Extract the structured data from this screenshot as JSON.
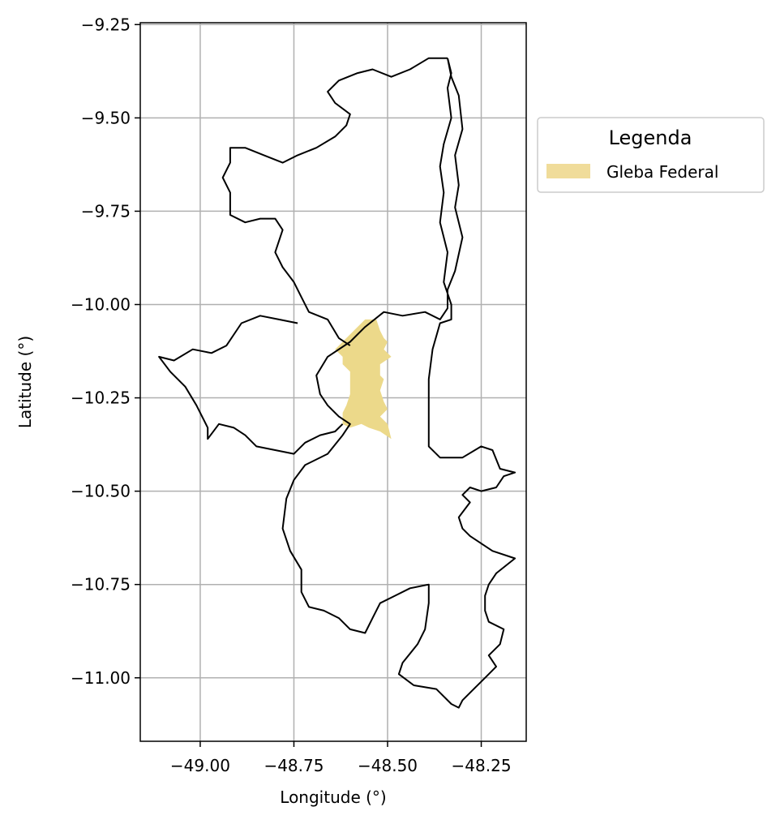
{
  "chart_data": {
    "type": "map",
    "xlabel": "Longitude (°)",
    "ylabel": "Latitude (°)",
    "xlim": [
      -49.16,
      -48.13
    ],
    "ylim": [
      -11.17,
      -9.245
    ],
    "x_ticks": [
      -49.0,
      -48.75,
      -48.5,
      -48.25
    ],
    "x_tick_labels": [
      "−49.00",
      "−48.75",
      "−48.50",
      "−48.25"
    ],
    "y_ticks": [
      -9.25,
      -9.5,
      -9.75,
      -10.0,
      -10.25,
      -10.5,
      -10.75,
      -11.0
    ],
    "y_tick_labels": [
      "−9.25",
      "−9.50",
      "−9.75",
      "−10.00",
      "−10.25",
      "−10.50",
      "−10.75",
      "−11.00"
    ],
    "grid": true,
    "legend": {
      "title": "Legenda",
      "placement": "outside-right-top",
      "entries": [
        {
          "label": "Gleba Federal",
          "color": "#f0dc9a"
        }
      ]
    },
    "colors": {
      "boundary": "#000000",
      "gleba_fill": "#ecd98a",
      "grid": "#b0b0b0"
    },
    "layers": {
      "boundary": [
        [
          -48.34,
          -9.34
        ],
        [
          -48.33,
          -9.38
        ],
        [
          -48.34,
          -9.42
        ],
        [
          -48.33,
          -9.5
        ],
        [
          -48.35,
          -9.57
        ],
        [
          -48.36,
          -9.63
        ],
        [
          -48.35,
          -9.7
        ],
        [
          -48.36,
          -9.78
        ],
        [
          -48.34,
          -9.86
        ],
        [
          -48.35,
          -9.94
        ],
        [
          -48.33,
          -10.0
        ],
        [
          -48.33,
          -10.04
        ],
        [
          -48.36,
          -10.05
        ],
        [
          -48.38,
          -10.12
        ],
        [
          -48.39,
          -10.2
        ],
        [
          -48.39,
          -10.3
        ],
        [
          -48.39,
          -10.38
        ],
        [
          -48.36,
          -10.41
        ],
        [
          -48.3,
          -10.41
        ],
        [
          -48.25,
          -10.38
        ],
        [
          -48.22,
          -10.39
        ],
        [
          -48.2,
          -10.44
        ],
        [
          -48.16,
          -10.45
        ],
        [
          -48.19,
          -10.46
        ],
        [
          -48.21,
          -10.49
        ],
        [
          -48.25,
          -10.5
        ],
        [
          -48.28,
          -10.49
        ],
        [
          -48.3,
          -10.51
        ],
        [
          -48.28,
          -10.53
        ],
        [
          -48.31,
          -10.57
        ],
        [
          -48.3,
          -10.6
        ],
        [
          -48.28,
          -10.62
        ],
        [
          -48.22,
          -10.66
        ],
        [
          -48.16,
          -10.68
        ],
        [
          -48.21,
          -10.72
        ],
        [
          -48.23,
          -10.75
        ],
        [
          -48.24,
          -10.78
        ],
        [
          -48.24,
          -10.82
        ],
        [
          -48.23,
          -10.85
        ],
        [
          -48.19,
          -10.87
        ],
        [
          -48.2,
          -10.91
        ],
        [
          -48.23,
          -10.94
        ],
        [
          -48.21,
          -10.97
        ],
        [
          -48.24,
          -11.0
        ],
        [
          -48.27,
          -11.03
        ],
        [
          -48.3,
          -11.06
        ],
        [
          -48.31,
          -11.08
        ],
        [
          -48.33,
          -11.07
        ],
        [
          -48.37,
          -11.03
        ],
        [
          -48.43,
          -11.02
        ],
        [
          -48.47,
          -10.99
        ],
        [
          -48.46,
          -10.96
        ],
        [
          -48.42,
          -10.91
        ],
        [
          -48.4,
          -10.87
        ],
        [
          -48.39,
          -10.8
        ],
        [
          -48.39,
          -10.75
        ],
        [
          -48.44,
          -10.76
        ],
        [
          -48.48,
          -10.78
        ],
        [
          -48.52,
          -10.8
        ],
        [
          -48.54,
          -10.84
        ],
        [
          -48.56,
          -10.88
        ],
        [
          -48.6,
          -10.87
        ],
        [
          -48.63,
          -10.84
        ],
        [
          -48.67,
          -10.82
        ],
        [
          -48.71,
          -10.81
        ],
        [
          -48.73,
          -10.77
        ],
        [
          -48.73,
          -10.71
        ],
        [
          -48.76,
          -10.66
        ],
        [
          -48.78,
          -10.6
        ],
        [
          -48.77,
          -10.52
        ],
        [
          -48.75,
          -10.47
        ],
        [
          -48.72,
          -10.43
        ],
        [
          -48.66,
          -10.4
        ],
        [
          -48.62,
          -10.35
        ],
        [
          -48.6,
          -10.32
        ],
        [
          -48.63,
          -10.3
        ],
        [
          -48.66,
          -10.27
        ],
        [
          -48.68,
          -10.24
        ],
        [
          -48.69,
          -10.19
        ],
        [
          -48.66,
          -10.14
        ],
        [
          -48.6,
          -10.1
        ],
        [
          -48.56,
          -10.06
        ],
        [
          -48.51,
          -10.02
        ],
        [
          -48.46,
          -10.03
        ],
        [
          -48.4,
          -10.02
        ],
        [
          -48.36,
          -10.04
        ],
        [
          -48.34,
          -10.01
        ],
        [
          -48.34,
          -9.96
        ],
        [
          -48.32,
          -9.91
        ],
        [
          -48.3,
          -9.82
        ],
        [
          -48.32,
          -9.74
        ],
        [
          -48.31,
          -9.68
        ],
        [
          -48.32,
          -9.6
        ],
        [
          -48.3,
          -9.53
        ],
        [
          -48.31,
          -9.44
        ],
        [
          -48.33,
          -9.39
        ],
        [
          -48.34,
          -9.34
        ]
      ],
      "boundary_west": [
        [
          -48.6,
          -10.11
        ],
        [
          -48.63,
          -10.09
        ],
        [
          -48.66,
          -10.04
        ],
        [
          -48.71,
          -10.02
        ],
        [
          -48.73,
          -9.98
        ],
        [
          -48.75,
          -9.94
        ],
        [
          -48.78,
          -9.9
        ],
        [
          -48.8,
          -9.86
        ],
        [
          -48.78,
          -9.8
        ],
        [
          -48.8,
          -9.77
        ],
        [
          -48.84,
          -9.77
        ],
        [
          -48.88,
          -9.78
        ],
        [
          -48.92,
          -9.76
        ],
        [
          -48.92,
          -9.7
        ],
        [
          -48.94,
          -9.66
        ],
        [
          -48.92,
          -9.62
        ],
        [
          -48.92,
          -9.58
        ],
        [
          -48.88,
          -9.58
        ],
        [
          -48.83,
          -9.6
        ],
        [
          -48.78,
          -9.62
        ],
        [
          -48.74,
          -9.6
        ],
        [
          -48.69,
          -9.58
        ],
        [
          -48.64,
          -9.55
        ],
        [
          -48.61,
          -9.52
        ],
        [
          -48.6,
          -9.49
        ],
        [
          -48.64,
          -9.46
        ],
        [
          -48.66,
          -9.43
        ],
        [
          -48.63,
          -9.4
        ],
        [
          -48.58,
          -9.38
        ],
        [
          -48.54,
          -9.37
        ],
        [
          -48.49,
          -9.39
        ],
        [
          -48.44,
          -9.37
        ],
        [
          -48.39,
          -9.34
        ],
        [
          -48.34,
          -9.34
        ]
      ],
      "boundary_southwest": [
        [
          -48.74,
          -10.05
        ],
        [
          -48.79,
          -10.04
        ],
        [
          -48.84,
          -10.03
        ],
        [
          -48.89,
          -10.05
        ],
        [
          -48.93,
          -10.11
        ],
        [
          -48.97,
          -10.13
        ],
        [
          -49.02,
          -10.12
        ],
        [
          -49.07,
          -10.15
        ],
        [
          -49.11,
          -10.14
        ],
        [
          -49.08,
          -10.18
        ],
        [
          -49.04,
          -10.22
        ],
        [
          -49.01,
          -10.27
        ],
        [
          -48.98,
          -10.33
        ],
        [
          -48.98,
          -10.36
        ],
        [
          -48.95,
          -10.32
        ],
        [
          -48.91,
          -10.33
        ],
        [
          -48.88,
          -10.35
        ],
        [
          -48.85,
          -10.38
        ],
        [
          -48.8,
          -10.39
        ],
        [
          -48.75,
          -10.4
        ],
        [
          -48.72,
          -10.37
        ],
        [
          -48.68,
          -10.35
        ],
        [
          -48.64,
          -10.34
        ],
        [
          -48.62,
          -10.32
        ]
      ],
      "gleba_federal": [
        [
          -48.56,
          -10.04
        ],
        [
          -48.53,
          -10.04
        ],
        [
          -48.52,
          -10.07
        ],
        [
          -48.51,
          -10.09
        ],
        [
          -48.5,
          -10.1
        ],
        [
          -48.51,
          -10.12
        ],
        [
          -48.49,
          -10.14
        ],
        [
          -48.52,
          -10.16
        ],
        [
          -48.52,
          -10.19
        ],
        [
          -48.51,
          -10.2
        ],
        [
          -48.52,
          -10.23
        ],
        [
          -48.51,
          -10.26
        ],
        [
          -48.5,
          -10.28
        ],
        [
          -48.52,
          -10.3
        ],
        [
          -48.5,
          -10.32
        ],
        [
          -48.49,
          -10.36
        ],
        [
          -48.52,
          -10.34
        ],
        [
          -48.55,
          -10.33
        ],
        [
          -48.57,
          -10.32
        ],
        [
          -48.6,
          -10.33
        ],
        [
          -48.62,
          -10.32
        ],
        [
          -48.62,
          -10.29
        ],
        [
          -48.61,
          -10.27
        ],
        [
          -48.6,
          -10.24
        ],
        [
          -48.6,
          -10.21
        ],
        [
          -48.6,
          -10.18
        ],
        [
          -48.62,
          -10.16
        ],
        [
          -48.62,
          -10.14
        ],
        [
          -48.64,
          -10.12
        ],
        [
          -48.62,
          -10.1
        ],
        [
          -48.6,
          -10.08
        ],
        [
          -48.58,
          -10.06
        ],
        [
          -48.56,
          -10.04
        ]
      ]
    }
  }
}
